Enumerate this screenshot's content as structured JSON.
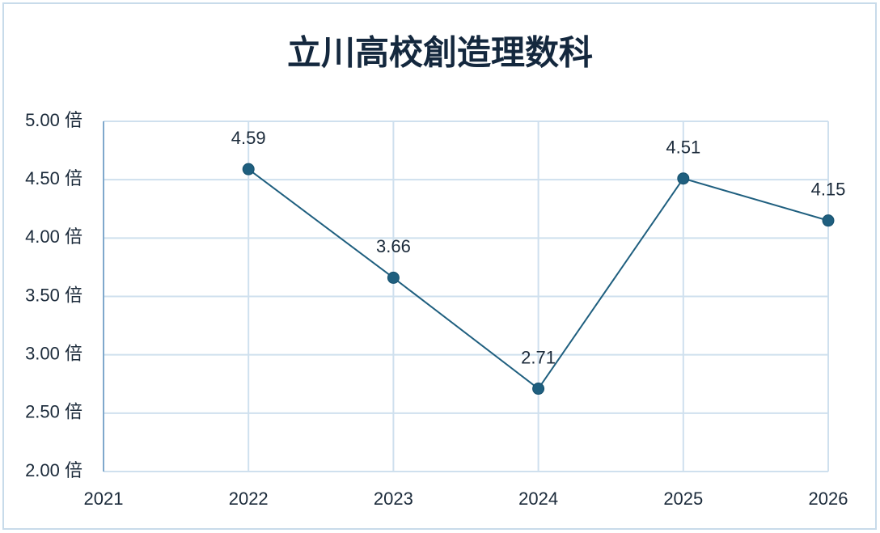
{
  "chart_data": {
    "type": "line",
    "title": "立川高校創造理数科",
    "x": [
      2022,
      2023,
      2024,
      2025,
      2026
    ],
    "series": [
      {
        "color": "#1f5f7f",
        "values": [
          4.59,
          3.66,
          2.71,
          4.51,
          4.15
        ]
      }
    ],
    "xlim": [
      2021,
      2026
    ],
    "xticks": [
      2021,
      2022,
      2023,
      2024,
      2025,
      2026
    ],
    "ylim": [
      2,
      5
    ],
    "yticks": [
      {
        "value": 2,
        "label": "2.00 倍"
      },
      {
        "value": 2.5,
        "label": "2.50 倍"
      },
      {
        "value": 3,
        "label": "3.00 倍"
      },
      {
        "value": 3.5,
        "label": "3.50 倍"
      },
      {
        "value": 4,
        "label": "4.00 倍"
      },
      {
        "value": 4.5,
        "label": "4.50 倍"
      },
      {
        "value": 5,
        "label": "5.00 倍"
      }
    ],
    "grid": true
  }
}
